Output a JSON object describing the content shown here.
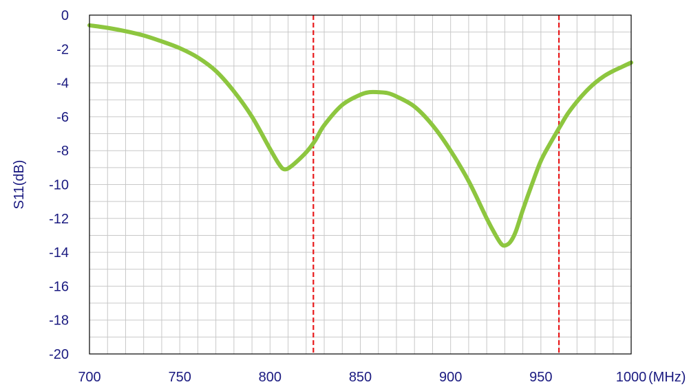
{
  "chart_data": {
    "type": "line",
    "title": "",
    "xlabel": "",
    "ylabel": "S11(dB)",
    "x_unit_label": "(MHz)",
    "xlim": [
      700,
      1000
    ],
    "ylim": [
      -20,
      0
    ],
    "x_ticks": [
      700,
      750,
      800,
      850,
      900,
      950,
      1000
    ],
    "y_ticks": [
      0,
      -2,
      -4,
      -6,
      -8,
      -10,
      -12,
      -14,
      -16,
      -18,
      -20
    ],
    "grid": true,
    "legend": "none",
    "series": [
      {
        "color": "#8dc63f",
        "x": [
          700,
          710,
          720,
          730,
          740,
          750,
          760,
          770,
          780,
          790,
          800,
          805,
          808,
          812,
          820,
          825,
          830,
          840,
          850,
          855,
          860,
          865,
          870,
          880,
          890,
          900,
          910,
          920,
          925,
          928,
          930,
          933,
          936,
          940,
          945,
          950,
          955,
          961,
          965,
          970,
          975,
          980,
          985,
          990,
          995,
          1000
        ],
        "y": [
          -0.6,
          -0.75,
          -0.95,
          -1.2,
          -1.55,
          -1.95,
          -2.5,
          -3.3,
          -4.5,
          -6.0,
          -7.9,
          -8.8,
          -9.1,
          -8.9,
          -8.1,
          -7.4,
          -6.5,
          -5.3,
          -4.7,
          -4.55,
          -4.55,
          -4.6,
          -4.8,
          -5.4,
          -6.5,
          -8.0,
          -9.8,
          -12.0,
          -13.0,
          -13.5,
          -13.6,
          -13.4,
          -12.8,
          -11.5,
          -10.0,
          -8.6,
          -7.6,
          -6.5,
          -5.8,
          -5.1,
          -4.5,
          -4.0,
          -3.6,
          -3.3,
          -3.05,
          -2.8
        ]
      }
    ],
    "markers": [
      {
        "x": 824,
        "color": "#e8181a",
        "style": "dashed"
      },
      {
        "x": 960,
        "color": "#e8181a",
        "style": "dashed"
      }
    ],
    "colors": {
      "axis_text": "#1a1a80",
      "grid": "#c8c8c8",
      "frame": "#000000"
    }
  }
}
